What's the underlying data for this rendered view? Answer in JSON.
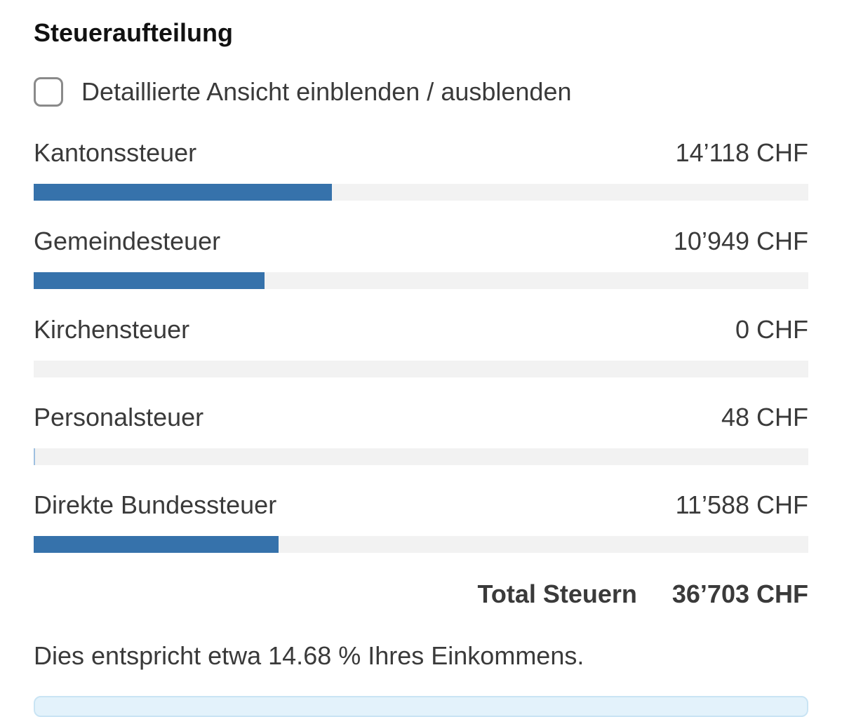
{
  "section": {
    "title": "Steueraufteilung",
    "toggle_label": "Detaillierte Ansicht einblenden / ausblenden",
    "toggle_checked": false
  },
  "taxes": [
    {
      "label": "Kantonssteuer",
      "amount": "14’118 CHF",
      "value": 14118,
      "bar_fraction": 0.385
    },
    {
      "label": "Gemeindesteuer",
      "amount": "10’949 CHF",
      "value": 10949,
      "bar_fraction": 0.298
    },
    {
      "label": "Kirchensteuer",
      "amount": "0 CHF",
      "value": 0,
      "bar_fraction": 0
    },
    {
      "label": "Personalsteuer",
      "amount": "48 CHF",
      "value": 48,
      "bar_fraction": 0.0013
    },
    {
      "label": "Direkte Bundessteuer",
      "amount": "11’588 CHF",
      "value": 11588,
      "bar_fraction": 0.316
    }
  ],
  "total": {
    "label": "Total Steuern",
    "amount": "36’703 CHF"
  },
  "summary_text": "Dies entspricht etwa 14.68 % Ihres Einkommens.",
  "colors": {
    "bar_fill": "#3672ab",
    "bar_track": "#f2f2f2",
    "info_box": "#e3f2fb"
  }
}
